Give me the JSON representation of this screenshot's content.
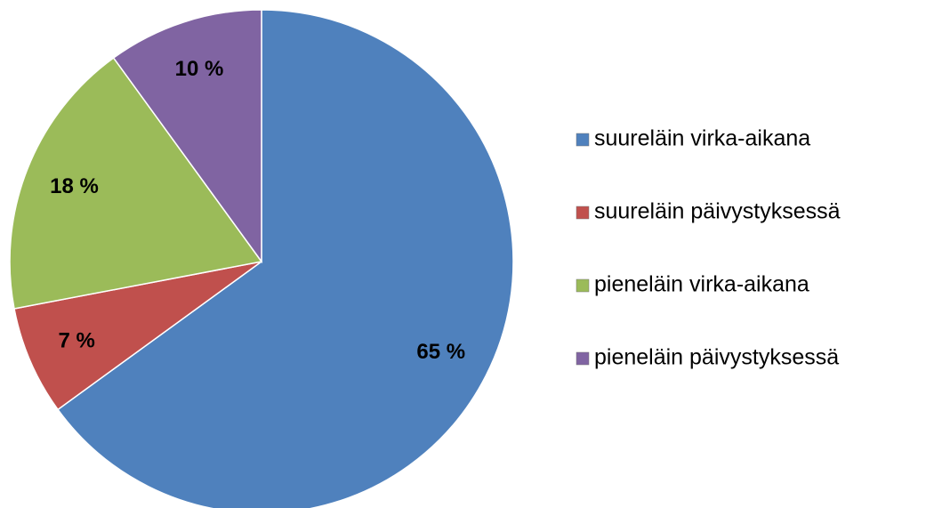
{
  "chart_data": {
    "type": "pie",
    "categories": [
      "suureläin virka-aikana",
      "suureläin päivystyksessä",
      "pieneläin virka-aikana",
      "pieneläin päivystyksessä"
    ],
    "values": [
      65,
      7,
      18,
      10
    ],
    "value_labels": [
      "65 %",
      "7 %",
      "18 %",
      "10 %"
    ],
    "colors": [
      "#4f81bd",
      "#c0504d",
      "#9bbb59",
      "#8064a2"
    ],
    "legend": "right"
  }
}
